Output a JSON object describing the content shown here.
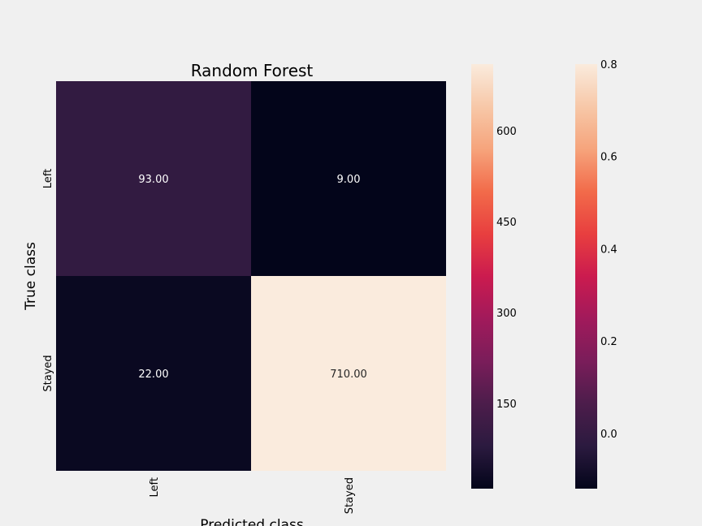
{
  "chart_data": {
    "type": "heatmap",
    "title": "Random Forest",
    "xlabel": "Predicted class",
    "ylabel": "True class",
    "x_categories": [
      "Left",
      "Stayed"
    ],
    "y_categories": [
      "Left",
      "Stayed"
    ],
    "values": [
      [
        93,
        9
      ],
      [
        22,
        710
      ]
    ],
    "value_labels": [
      [
        "93.00",
        "9.00"
      ],
      [
        "22.00",
        "710.00"
      ]
    ],
    "colorbars": [
      {
        "ticks": [
          "150",
          "300",
          "450",
          "600"
        ],
        "tick_values": [
          150,
          300,
          450,
          600
        ],
        "range": [
          9,
          710
        ]
      },
      {
        "ticks": [
          "0.0",
          "0.2",
          "0.4",
          "0.6",
          "0.8"
        ],
        "tick_values": [
          0.0,
          0.2,
          0.4,
          0.6,
          0.8
        ],
        "range": [
          -0.12,
          0.8
        ]
      }
    ],
    "colormap": [
      "#03051a",
      "#2b1a3f",
      "#4c1d4b",
      "#7a1d5a",
      "#a11a5b",
      "#cb1b4f",
      "#e83f3f",
      "#f26b4a",
      "#f6a47c",
      "#f7c8a8",
      "#faebdd"
    ],
    "background": "#f0f0f0"
  }
}
